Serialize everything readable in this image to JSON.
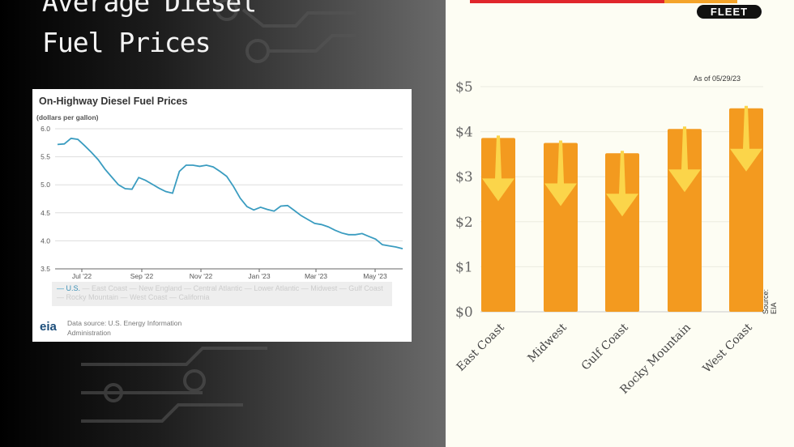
{
  "title_lines": [
    "Average Diesel",
    "Fuel Prices"
  ],
  "brand": {
    "badge": "FLEET"
  },
  "colors": {
    "line": "#3a9cc0",
    "bar": "#f39a1f",
    "arrow": "#fbd54a"
  },
  "chart_data": [
    {
      "type": "line",
      "title": "On-Highway Diesel Fuel Prices",
      "ylabel": "(dollars per gallon)",
      "ylim": [
        3.5,
        6.0
      ],
      "yticks": [
        "6.0",
        "5.5",
        "5.0",
        "4.5",
        "4.0",
        "3.5"
      ],
      "xticks": [
        "Jul '22",
        "Sep '22",
        "Nov '22",
        "Jan '23",
        "Mar '23",
        "May '23"
      ],
      "grid": true,
      "legend": [
        "U.S.",
        "East Coast",
        "New England",
        "Central Atlantic",
        "Lower Atlantic",
        "Midwest",
        "Gulf Coast",
        "Rocky Mountain",
        "West Coast",
        "California"
      ],
      "source": "Data source: U.S. Energy Information Administration",
      "logo": "eia",
      "series": [
        {
          "name": "U.S.",
          "frequency": "weekly",
          "values": [
            5.72,
            5.73,
            5.83,
            5.81,
            5.7,
            5.58,
            5.45,
            5.28,
            5.14,
            5.0,
            4.93,
            4.92,
            5.13,
            5.08,
            5.01,
            4.94,
            4.88,
            4.85,
            5.24,
            5.35,
            5.35,
            5.33,
            5.35,
            5.32,
            5.24,
            5.15,
            4.97,
            4.76,
            4.61,
            4.55,
            4.6,
            4.56,
            4.53,
            4.62,
            4.63,
            4.54,
            4.45,
            4.38,
            4.31,
            4.29,
            4.25,
            4.19,
            4.14,
            4.11,
            4.11,
            4.13,
            4.08,
            4.03,
            3.93,
            3.91,
            3.89,
            3.86
          ]
        }
      ]
    },
    {
      "type": "bar",
      "annotation": "As of 05/29/23",
      "source_note": "Source: EIA",
      "yticks": [
        "$0",
        "$1",
        "$2",
        "$3",
        "$4",
        "$5"
      ],
      "ylim": [
        0,
        5
      ],
      "categories": [
        "East Coast",
        "Midwest",
        "Gulf Coast",
        "Rocky Mountain",
        "West Coast"
      ],
      "values": [
        3.86,
        3.75,
        3.52,
        4.06,
        4.52
      ]
    }
  ]
}
